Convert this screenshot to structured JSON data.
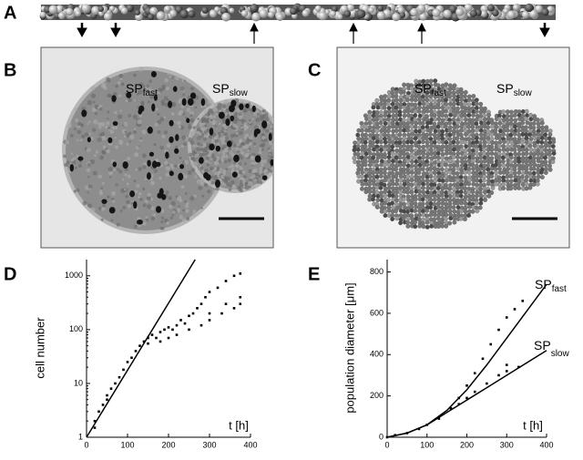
{
  "panel_labels": [
    "A",
    "B",
    "C",
    "D",
    "E"
  ],
  "image_labels": [
    {
      "text": "SP",
      "sub": "fast"
    },
    {
      "text": "SP",
      "sub": "slow"
    }
  ],
  "chart_data": [
    {
      "type": "scatter",
      "log_y": true,
      "ylabel": "cell number",
      "xlabel": "t [h]",
      "xlim": [
        0,
        400
      ],
      "xticks": [
        0,
        100,
        200,
        300,
        400
      ],
      "ylim": [
        1,
        2000
      ],
      "yticks": [
        1,
        10,
        100,
        1000
      ],
      "series": [
        {
          "color": "#000000",
          "x": [
            20,
            20,
            30,
            40,
            50,
            50,
            60,
            70,
            80,
            90,
            100,
            110,
            120,
            130,
            140,
            150,
            150,
            160,
            170,
            180,
            190,
            200,
            210,
            220,
            230,
            240,
            250,
            260,
            270,
            280,
            290,
            300,
            320,
            340,
            360,
            375,
            180,
            200,
            220,
            250,
            280,
            300,
            330,
            360,
            375,
            300,
            340,
            375
          ],
          "values": [
            1.5,
            2,
            3,
            4,
            5,
            6,
            8,
            10,
            13,
            18,
            25,
            30,
            40,
            50,
            60,
            55,
            70,
            80,
            70,
            90,
            100,
            110,
            100,
            120,
            150,
            130,
            180,
            200,
            250,
            300,
            400,
            500,
            600,
            800,
            1000,
            1100,
            60,
            70,
            80,
            100,
            120,
            150,
            200,
            250,
            300,
            200,
            300,
            400
          ]
        },
        {
          "type": "line",
          "color": "#000000",
          "x": [
            0,
            265
          ],
          "values": [
            1,
            2000
          ]
        }
      ]
    },
    {
      "type": "scatter",
      "ylabel": "population diameter [μm]",
      "xlabel": "t [h]",
      "xlim": [
        0,
        400
      ],
      "xticks": [
        0,
        100,
        200,
        300,
        400
      ],
      "ylim": [
        0,
        860
      ],
      "yticks": [
        0,
        200,
        400,
        600,
        800
      ],
      "annotations": [
        {
          "text": "SP",
          "sub": "fast"
        },
        {
          "text": "SP",
          "sub": "slow"
        }
      ],
      "series": [
        {
          "color": "#000000",
          "x": [
            0,
            20,
            50,
            80,
            100,
            130,
            160,
            180,
            200,
            220,
            240,
            260,
            280,
            300,
            320,
            340,
            180,
            200,
            220,
            250,
            280,
            300,
            330,
            300
          ],
          "values": [
            0,
            10,
            20,
            40,
            60,
            90,
            140,
            190,
            250,
            310,
            380,
            450,
            520,
            580,
            620,
            660,
            160,
            190,
            220,
            260,
            300,
            320,
            340,
            350
          ]
        },
        {
          "type": "line",
          "color": "#000000",
          "x": [
            0,
            50,
            100,
            150,
            200,
            250,
            300,
            350,
            400
          ],
          "values": [
            0,
            20,
            60,
            130,
            230,
            350,
            480,
            610,
            740
          ]
        },
        {
          "type": "line",
          "color": "#000000",
          "x": [
            0,
            50,
            100,
            150,
            200,
            250,
            300,
            350,
            400
          ],
          "values": [
            0,
            20,
            60,
            120,
            180,
            240,
            300,
            360,
            420
          ]
        }
      ]
    }
  ]
}
